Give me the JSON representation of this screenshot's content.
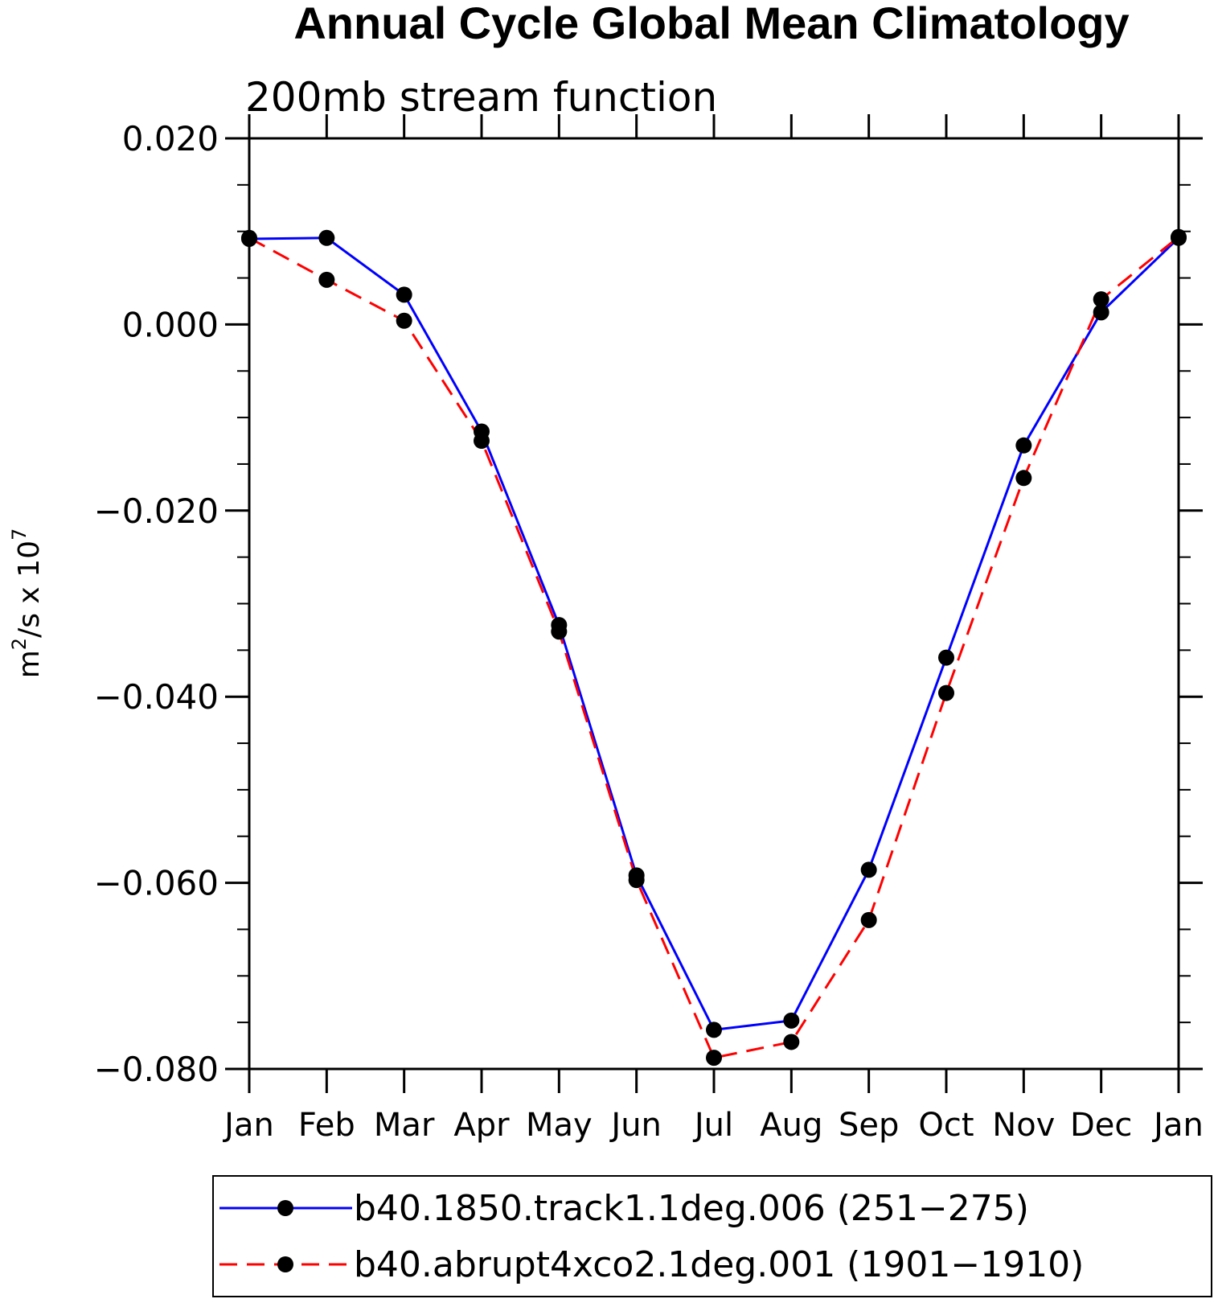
{
  "chart_data": {
    "type": "line",
    "title": "Annual Cycle Global Mean Climatology",
    "subtitle": "200mb stream function",
    "ylabel_base": "m",
    "ylabel_exp1": "2",
    "ylabel_mid": "/s x 10",
    "ylabel_exp2": "7",
    "ylim": [
      -0.08,
      0.02
    ],
    "yticks": [
      0.02,
      0.0,
      -0.02,
      -0.04,
      -0.06,
      -0.08
    ],
    "ytick_labels": [
      "0.020",
      "0.000",
      "−0.020",
      "−0.040",
      "−0.060",
      "−0.080"
    ],
    "categories": [
      "Jan",
      "Feb",
      "Mar",
      "Apr",
      "May",
      "Jun",
      "Jul",
      "Aug",
      "Sep",
      "Oct",
      "Nov",
      "Dec",
      "Jan"
    ],
    "series": [
      {
        "name": "b40.1850.track1.1deg.006 (251−275)",
        "color": "#0000ff",
        "dash": "solid",
        "values": [
          0.0092,
          0.0093,
          0.0032,
          -0.0115,
          -0.0323,
          -0.0592,
          -0.0758,
          -0.0748,
          -0.0586,
          -0.0358,
          -0.013,
          0.0013,
          0.0093
        ]
      },
      {
        "name": "b40.abrupt4xco2.1deg.001 (1901−1910)",
        "color": "#ff0000",
        "dash": "dashed",
        "values": [
          0.0093,
          0.0048,
          0.0004,
          -0.0125,
          -0.033,
          -0.0597,
          -0.0788,
          -0.0771,
          -0.064,
          -0.0396,
          -0.0165,
          0.0027,
          0.0094
        ]
      }
    ],
    "legend_position": "bottom"
  }
}
